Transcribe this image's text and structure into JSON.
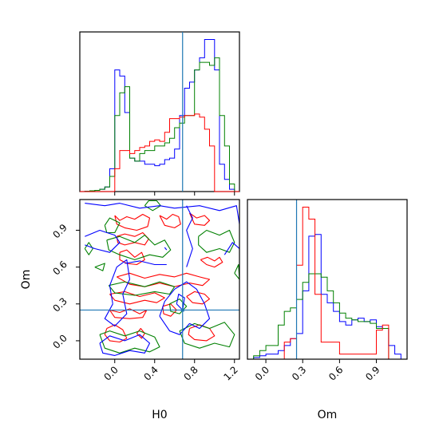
{
  "chart_data": {
    "type": "corner",
    "parameters": [
      "H0",
      "Om"
    ],
    "truths": {
      "H0": 0.68,
      "Om": 0.25
    },
    "truth_color": "#1f77b4",
    "series": [
      {
        "color": "#0000ff"
      },
      {
        "color": "#008000"
      },
      {
        "color": "#ff0000"
      }
    ],
    "histograms": {
      "H0": {
        "range": [
          -0.35,
          1.25
        ],
        "bin_edges": [
          -0.35,
          -0.3,
          -0.25,
          -0.2,
          -0.15,
          -0.1,
          -0.05,
          0.0,
          0.05,
          0.1,
          0.15,
          0.2,
          0.25,
          0.3,
          0.35,
          0.4,
          0.45,
          0.5,
          0.55,
          0.6,
          0.65,
          0.7,
          0.75,
          0.8,
          0.85,
          0.9,
          0.95,
          1.0,
          1.05,
          1.1,
          1.15,
          1.2,
          1.25
        ],
        "series_counts": [
          [
            0.0,
            0.2,
            0.5,
            0.8,
            1.5,
            3.0,
            15.0,
            80.0,
            76.0,
            52.0,
            22.0,
            20.0,
            20.0,
            18.0,
            18.0,
            17.0,
            18.0,
            21.0,
            22.0,
            28.0,
            50.0,
            68.0,
            72.0,
            80.0,
            88.0,
            100.0,
            100.0,
            80.0,
            18.0,
            8.0,
            1.5,
            0.0
          ],
          [
            0.0,
            0.2,
            0.5,
            0.8,
            1.5,
            3.0,
            10.0,
            50.0,
            65.0,
            69.0,
            22.0,
            20.0,
            25.0,
            27.0,
            27.0,
            30.0,
            30.0,
            32.0,
            35.0,
            42.0,
            45.0,
            50.0,
            50.0,
            80.0,
            85.0,
            85.0,
            83.0,
            88.0,
            50.0,
            30.0,
            5.0,
            0.0
          ],
          [
            0.0,
            0.0,
            0.0,
            0.0,
            0.0,
            0.0,
            0.0,
            15.0,
            27.0,
            27.0,
            25.0,
            27.0,
            29.0,
            30.0,
            33.0,
            34.0,
            33.0,
            39.0,
            48.0,
            48.0,
            49.0,
            50.0,
            50.0,
            51.0,
            49.0,
            41.0,
            30.0,
            0.0,
            0.0,
            0.0,
            0.0,
            0.0
          ]
        ]
      },
      "Om": {
        "range": [
          -0.15,
          1.15
        ],
        "bin_edges": [
          -0.15,
          -0.1,
          -0.05,
          0.0,
          0.05,
          0.1,
          0.15,
          0.2,
          0.25,
          0.3,
          0.35,
          0.4,
          0.45,
          0.5,
          0.55,
          0.6,
          0.65,
          0.7,
          0.75,
          0.8,
          0.85,
          0.9,
          0.95,
          1.0,
          1.05,
          1.1,
          1.15
        ],
        "series_counts": [
          [
            0.0,
            1.0,
            2.0,
            3.0,
            3.0,
            5.0,
            8.0,
            12.0,
            15.0,
            40.0,
            72.0,
            73.0,
            38.0,
            33.0,
            28.0,
            22.0,
            20.0,
            23.0,
            24.0,
            22.0,
            23.0,
            19.0,
            18.0,
            8.0,
            3.0,
            0.0
          ],
          [
            0.0,
            2.0,
            5.0,
            8.0,
            8.0,
            20.0,
            28.0,
            30.0,
            35.0,
            45.0,
            50.0,
            50.0,
            48.0,
            40.0,
            33.0,
            27.0,
            24.0,
            23.0,
            22.0,
            22.0,
            21.0,
            18.0,
            18.0,
            0.0,
            0.0,
            0.0
          ],
          [
            0.0,
            0.0,
            0.0,
            0.0,
            0.0,
            0.0,
            10.0,
            12.0,
            55.0,
            89.0,
            82.0,
            38.0,
            10.0,
            10.0,
            10.0,
            3.0,
            3.0,
            3.0,
            3.0,
            3.0,
            3.0,
            17.0,
            20.0,
            0.0,
            0.0,
            0.0
          ]
        ]
      }
    },
    "contour_levels": [
      "0.118",
      "0.393"
    ],
    "ticks": {
      "H0": [
        "0.0",
        "0.4",
        "0.8",
        "1.2"
      ],
      "H0_values": [
        0.0,
        0.4,
        0.8,
        1.2
      ],
      "Om": [
        "0.0",
        "0.3",
        "0.6",
        "0.9"
      ],
      "Om_values": [
        0.0,
        0.3,
        0.6,
        0.9
      ]
    },
    "xlabel_left": "H0",
    "xlabel_right": "Om",
    "ylabel_bottom": "Om",
    "joint_range": {
      "x": [
        -0.35,
        1.25
      ],
      "y": [
        -0.15,
        1.15
      ]
    },
    "grid": false
  }
}
